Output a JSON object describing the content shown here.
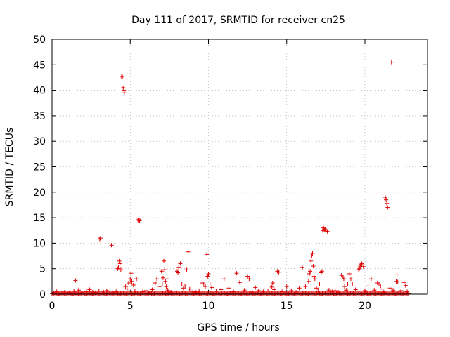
{
  "chart_data": {
    "type": "scatter",
    "title": "Day 111 of 2017, SRMTID for receiver cn25",
    "xlabel": "GPS time / hours",
    "ylabel": "SRMTID / TECUs",
    "xlim": [
      0,
      24
    ],
    "ylim": [
      0,
      50
    ],
    "x_ticks": [
      0,
      5,
      10,
      15,
      20
    ],
    "y_ticks": [
      0,
      5,
      10,
      15,
      20,
      25,
      30,
      35,
      40,
      45,
      50
    ],
    "grid": true,
    "legend": "none",
    "marker": "+",
    "color": "#e00000",
    "series": [
      {
        "points": [
          [
            0.1,
            0.3
          ],
          [
            0.3,
            0.5
          ],
          [
            0.5,
            0.2
          ],
          [
            0.8,
            0.4
          ],
          [
            1.1,
            0.3
          ],
          [
            1.4,
            0.6
          ],
          [
            1.5,
            2.7
          ],
          [
            1.7,
            0.8
          ],
          [
            1.9,
            0.3
          ],
          [
            2.2,
            0.5
          ],
          [
            2.4,
            0.9
          ],
          [
            2.6,
            0.4
          ],
          [
            2.8,
            0.3
          ],
          [
            3.0,
            0.6
          ],
          [
            3.05,
            10.8
          ],
          [
            3.1,
            11.0
          ],
          [
            3.3,
            0.4
          ],
          [
            3.5,
            0.7
          ],
          [
            3.8,
            9.6
          ],
          [
            3.9,
            0.3
          ],
          [
            4.1,
            0.5
          ],
          [
            4.2,
            5.0
          ],
          [
            4.25,
            5.3
          ],
          [
            4.3,
            6.5
          ],
          [
            4.35,
            6.0
          ],
          [
            4.4,
            4.8
          ],
          [
            4.45,
            42.7
          ],
          [
            4.5,
            42.6
          ],
          [
            4.55,
            40.5
          ],
          [
            4.6,
            40.0
          ],
          [
            4.62,
            39.5
          ],
          [
            4.7,
            1.5
          ],
          [
            4.8,
            1.0
          ],
          [
            4.9,
            2.2
          ],
          [
            5.0,
            3.0
          ],
          [
            5.05,
            4.1
          ],
          [
            5.1,
            2.5
          ],
          [
            5.2,
            1.8
          ],
          [
            5.3,
            0.6
          ],
          [
            5.4,
            3.0
          ],
          [
            5.5,
            14.5
          ],
          [
            5.55,
            14.7
          ],
          [
            5.6,
            14.4
          ],
          [
            5.8,
            0.5
          ],
          [
            6.0,
            0.7
          ],
          [
            6.2,
            0.3
          ],
          [
            6.4,
            0.9
          ],
          [
            6.6,
            2.2
          ],
          [
            6.7,
            3.0
          ],
          [
            6.9,
            1.5
          ],
          [
            7.0,
            4.5
          ],
          [
            7.05,
            2.0
          ],
          [
            7.1,
            3.2
          ],
          [
            7.15,
            6.5
          ],
          [
            7.2,
            4.8
          ],
          [
            7.25,
            2.5
          ],
          [
            7.3,
            1.5
          ],
          [
            7.35,
            3.0
          ],
          [
            7.4,
            0.8
          ],
          [
            7.6,
            0.4
          ],
          [
            7.8,
            0.6
          ],
          [
            8.0,
            4.5
          ],
          [
            8.05,
            4.2
          ],
          [
            8.1,
            5.2
          ],
          [
            8.2,
            6.0
          ],
          [
            8.3,
            2.0
          ],
          [
            8.4,
            1.2
          ],
          [
            8.5,
            1.6
          ],
          [
            8.6,
            4.8
          ],
          [
            8.7,
            8.3
          ],
          [
            8.8,
            1.0
          ],
          [
            9.0,
            0.5
          ],
          [
            9.2,
            0.4
          ],
          [
            9.4,
            0.6
          ],
          [
            9.6,
            2.2
          ],
          [
            9.7,
            2.0
          ],
          [
            9.8,
            1.5
          ],
          [
            9.9,
            7.8
          ],
          [
            9.95,
            3.5
          ],
          [
            10.0,
            4.0
          ],
          [
            10.1,
            2.0
          ],
          [
            10.2,
            1.3
          ],
          [
            10.5,
            0.6
          ],
          [
            10.8,
            0.9
          ],
          [
            11.0,
            3.0
          ],
          [
            11.3,
            1.2
          ],
          [
            11.6,
            0.5
          ],
          [
            11.8,
            4.1
          ],
          [
            12.0,
            2.3
          ],
          [
            12.3,
            0.8
          ],
          [
            12.5,
            3.5
          ],
          [
            12.6,
            3.0
          ],
          [
            12.8,
            0.4
          ],
          [
            13.0,
            1.3
          ],
          [
            13.2,
            0.7
          ],
          [
            13.5,
            0.5
          ],
          [
            13.8,
            0.6
          ],
          [
            14.0,
            5.3
          ],
          [
            14.05,
            1.4
          ],
          [
            14.1,
            2.2
          ],
          [
            14.2,
            0.9
          ],
          [
            14.4,
            4.5
          ],
          [
            14.5,
            4.3
          ],
          [
            14.7,
            0.5
          ],
          [
            15.0,
            1.5
          ],
          [
            15.3,
            0.7
          ],
          [
            15.6,
            0.4
          ],
          [
            15.8,
            1.2
          ],
          [
            16.0,
            5.2
          ],
          [
            16.2,
            1.5
          ],
          [
            16.4,
            2.5
          ],
          [
            16.45,
            4.0
          ],
          [
            16.5,
            4.5
          ],
          [
            16.55,
            6.5
          ],
          [
            16.6,
            7.5
          ],
          [
            16.65,
            8.0
          ],
          [
            16.7,
            5.5
          ],
          [
            16.75,
            3.5
          ],
          [
            16.8,
            3.0
          ],
          [
            16.9,
            1.2
          ],
          [
            17.0,
            0.6
          ],
          [
            17.1,
            2.0
          ],
          [
            17.2,
            4.2
          ],
          [
            17.25,
            4.5
          ],
          [
            17.3,
            12.5
          ],
          [
            17.35,
            13.0
          ],
          [
            17.4,
            12.6
          ],
          [
            17.45,
            12.8
          ],
          [
            17.5,
            12.4
          ],
          [
            17.6,
            12.3
          ],
          [
            17.7,
            0.8
          ],
          [
            17.9,
            0.5
          ],
          [
            18.1,
            0.7
          ],
          [
            18.3,
            0.4
          ],
          [
            18.5,
            3.7
          ],
          [
            18.6,
            3.4
          ],
          [
            18.65,
            3.0
          ],
          [
            18.7,
            1.5
          ],
          [
            18.8,
            0.8
          ],
          [
            18.9,
            2.0
          ],
          [
            19.0,
            4.0
          ],
          [
            19.1,
            3.0
          ],
          [
            19.2,
            2.0
          ],
          [
            19.4,
            0.9
          ],
          [
            19.6,
            4.8
          ],
          [
            19.65,
            5.0
          ],
          [
            19.7,
            5.5
          ],
          [
            19.75,
            5.8
          ],
          [
            19.8,
            6.0
          ],
          [
            19.9,
            5.4
          ],
          [
            20.0,
            0.7
          ],
          [
            20.2,
            1.6
          ],
          [
            20.4,
            3.0
          ],
          [
            20.6,
            0.8
          ],
          [
            20.8,
            2.2
          ],
          [
            20.9,
            2.0
          ],
          [
            21.0,
            1.6
          ],
          [
            21.1,
            1.0
          ],
          [
            21.2,
            0.4
          ],
          [
            21.3,
            19.0
          ],
          [
            21.35,
            18.5
          ],
          [
            21.4,
            17.8
          ],
          [
            21.45,
            17.0
          ],
          [
            21.6,
            1.2
          ],
          [
            21.7,
            45.5
          ],
          [
            21.8,
            0.8
          ],
          [
            22.0,
            2.5
          ],
          [
            22.05,
            3.8
          ],
          [
            22.1,
            2.4
          ],
          [
            22.3,
            0.7
          ],
          [
            22.5,
            2.3
          ],
          [
            22.6,
            1.7
          ],
          [
            22.7,
            0.5
          ]
        ]
      }
    ]
  }
}
